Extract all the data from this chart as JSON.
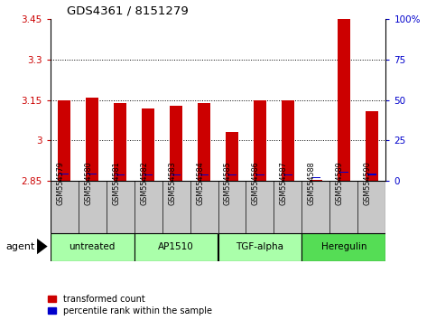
{
  "title": "GDS4361 / 8151279",
  "samples": [
    "GSM554579",
    "GSM554580",
    "GSM554581",
    "GSM554582",
    "GSM554583",
    "GSM554584",
    "GSM554585",
    "GSM554586",
    "GSM554587",
    "GSM554588",
    "GSM554589",
    "GSM554590"
  ],
  "red_values": [
    3.148,
    3.16,
    3.14,
    3.12,
    3.13,
    3.14,
    3.03,
    3.148,
    3.148,
    2.852,
    3.45,
    3.11
  ],
  "blue_values": [
    2.875,
    2.875,
    2.872,
    2.872,
    2.872,
    2.872,
    2.872,
    2.872,
    2.872,
    2.862,
    2.882,
    2.873
  ],
  "base_value": 2.85,
  "y_min": 2.85,
  "y_max": 3.45,
  "y_ticks": [
    2.85,
    3.0,
    3.15,
    3.3,
    3.45
  ],
  "y_tick_labels": [
    "2.85",
    "3",
    "3.15",
    "3.3",
    "3.45"
  ],
  "right_y_ticks": [
    0,
    25,
    50,
    75,
    100
  ],
  "right_y_tick_labels": [
    "0",
    "25",
    "50",
    "75",
    "100%"
  ],
  "agent_groups": [
    {
      "label": "untreated",
      "start": 0,
      "end": 3,
      "color": "#aaffaa"
    },
    {
      "label": "AP1510",
      "start": 3,
      "end": 6,
      "color": "#aaffaa"
    },
    {
      "label": "TGF-alpha",
      "start": 6,
      "end": 9,
      "color": "#aaffaa"
    },
    {
      "label": "Heregulin",
      "start": 9,
      "end": 12,
      "color": "#55dd55"
    }
  ],
  "bar_width": 0.45,
  "red_color": "#cc0000",
  "blue_color": "#0000cc",
  "grid_color": "#000000",
  "title_color": "#000000",
  "left_tick_color": "#cc0000",
  "right_tick_color": "#0000cc",
  "sample_area_color": "#c8c8c8",
  "legend_red": "transformed count",
  "legend_blue": "percentile rank within the sample",
  "agent_label": "agent",
  "figsize": [
    4.83,
    3.54
  ],
  "dpi": 100
}
